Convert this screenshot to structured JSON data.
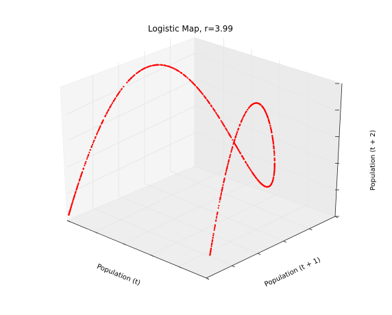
{
  "chart_data": {
    "type": "scatter",
    "projection": "3d",
    "title": "Logistic Map, r=3.99",
    "xlabel": "Population (t)",
    "ylabel": "Population (t + 1)",
    "zlabel": "Population (t + 2)",
    "r": 3.99,
    "xlim": [
      0,
      1
    ],
    "ylim": [
      0,
      1
    ],
    "zlim": [
      0,
      1
    ],
    "grid": true,
    "tick_labels_shown": false,
    "marker_color": "#ff0000",
    "pane_color": "#f2f2f2",
    "grid_color": "#e6e6e6"
  }
}
